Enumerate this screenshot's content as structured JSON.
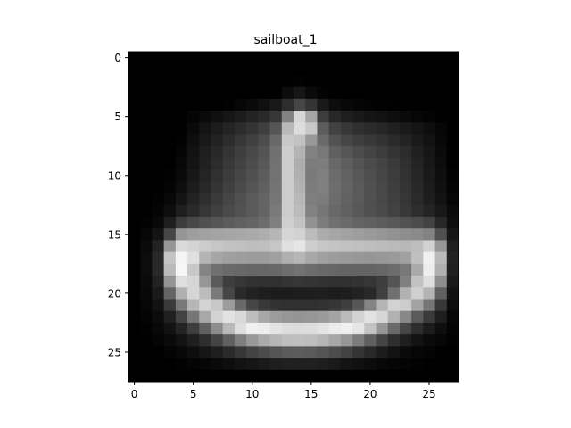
{
  "title": "sailboat_1",
  "chart_data": {
    "type": "heatmap",
    "title": "sailboat_1",
    "colormap": "gray",
    "value_range": [
      0,
      255
    ],
    "x_ticks": [
      0,
      5,
      10,
      15,
      20,
      25
    ],
    "y_ticks": [
      0,
      5,
      10,
      15,
      20,
      25
    ],
    "x_tick_labels": [
      "0",
      "5",
      "10",
      "15",
      "20",
      "25"
    ],
    "y_tick_labels": [
      "0",
      "5",
      "10",
      "15",
      "20",
      "25"
    ],
    "xlim": [
      -0.5,
      27.5
    ],
    "ylim": [
      27.5,
      -0.5
    ],
    "grid": false,
    "rows": [
      [
        0,
        0,
        0,
        0,
        0,
        0,
        0,
        0,
        0,
        0,
        0,
        0,
        0,
        0,
        0,
        0,
        0,
        0,
        0,
        0,
        0,
        0,
        0,
        0,
        0,
        0,
        0,
        0
      ],
      [
        0,
        0,
        0,
        0,
        0,
        0,
        0,
        0,
        0,
        0,
        0,
        0,
        0,
        0,
        0,
        0,
        0,
        0,
        0,
        0,
        0,
        0,
        0,
        0,
        0,
        0,
        0,
        0
      ],
      [
        0,
        0,
        0,
        0,
        0,
        0,
        0,
        0,
        0,
        0,
        0,
        0,
        0,
        0,
        2,
        0,
        0,
        0,
        0,
        0,
        0,
        0,
        0,
        0,
        0,
        0,
        0,
        0
      ],
      [
        0,
        0,
        0,
        0,
        0,
        0,
        0,
        0,
        0,
        0,
        0,
        0,
        0,
        12,
        22,
        10,
        3,
        0,
        0,
        0,
        0,
        0,
        0,
        0,
        0,
        0,
        0,
        0
      ],
      [
        0,
        0,
        0,
        0,
        0,
        0,
        0,
        0,
        2,
        6,
        10,
        16,
        24,
        45,
        70,
        52,
        25,
        13,
        8,
        5,
        3,
        2,
        1,
        0,
        0,
        0,
        0,
        0
      ],
      [
        0,
        0,
        0,
        0,
        0,
        5,
        10,
        16,
        22,
        28,
        35,
        42,
        55,
        130,
        215,
        165,
        60,
        40,
        30,
        25,
        20,
        18,
        14,
        10,
        6,
        3,
        0,
        0
      ],
      [
        0,
        0,
        0,
        0,
        0,
        10,
        20,
        28,
        36,
        44,
        52,
        62,
        85,
        185,
        220,
        200,
        92,
        66,
        55,
        48,
        42,
        38,
        32,
        26,
        20,
        14,
        6,
        0
      ],
      [
        0,
        0,
        0,
        0,
        2,
        14,
        24,
        34,
        44,
        54,
        64,
        76,
        104,
        200,
        195,
        152,
        106,
        82,
        70,
        62,
        56,
        50,
        42,
        35,
        26,
        18,
        8,
        0
      ],
      [
        0,
        0,
        0,
        0,
        5,
        18,
        30,
        40,
        52,
        62,
        72,
        84,
        112,
        205,
        180,
        130,
        120,
        96,
        86,
        76,
        68,
        60,
        52,
        44,
        32,
        22,
        10,
        0
      ],
      [
        0,
        0,
        0,
        0,
        8,
        20,
        33,
        44,
        56,
        66,
        76,
        88,
        114,
        205,
        174,
        124,
        125,
        104,
        94,
        84,
        75,
        68,
        58,
        48,
        36,
        24,
        12,
        0
      ],
      [
        0,
        0,
        0,
        2,
        10,
        24,
        36,
        48,
        60,
        70,
        80,
        92,
        114,
        205,
        176,
        122,
        128,
        108,
        98,
        88,
        78,
        70,
        60,
        50,
        38,
        26,
        14,
        2
      ],
      [
        0,
        0,
        0,
        4,
        14,
        28,
        40,
        52,
        64,
        74,
        84,
        96,
        116,
        204,
        180,
        124,
        128,
        110,
        100,
        90,
        80,
        72,
        62,
        52,
        40,
        28,
        16,
        4
      ],
      [
        0,
        0,
        2,
        8,
        20,
        34,
        46,
        58,
        70,
        80,
        90,
        100,
        118,
        204,
        184,
        126,
        124,
        108,
        98,
        90,
        80,
        72,
        64,
        54,
        42,
        30,
        18,
        6
      ],
      [
        0,
        0,
        4,
        14,
        30,
        42,
        54,
        64,
        74,
        82,
        90,
        100,
        122,
        204,
        188,
        130,
        118,
        104,
        96,
        88,
        80,
        74,
        66,
        56,
        46,
        36,
        24,
        10
      ],
      [
        0,
        2,
        8,
        30,
        60,
        72,
        80,
        86,
        92,
        96,
        100,
        108,
        128,
        208,
        196,
        146,
        124,
        112,
        106,
        100,
        96,
        92,
        88,
        82,
        76,
        66,
        40,
        14
      ],
      [
        0,
        6,
        20,
        70,
        150,
        158,
        162,
        164,
        166,
        168,
        170,
        174,
        182,
        214,
        210,
        188,
        172,
        166,
        162,
        158,
        154,
        150,
        146,
        142,
        138,
        130,
        80,
        22
      ],
      [
        0,
        10,
        34,
        150,
        218,
        212,
        204,
        198,
        194,
        192,
        190,
        192,
        198,
        224,
        230,
        206,
        198,
        196,
        194,
        192,
        190,
        188,
        186,
        184,
        190,
        210,
        150,
        30
      ],
      [
        0,
        12,
        40,
        196,
        245,
        224,
        180,
        166,
        160,
        158,
        156,
        156,
        160,
        176,
        182,
        168,
        160,
        156,
        154,
        152,
        150,
        152,
        154,
        160,
        192,
        240,
        186,
        34
      ],
      [
        0,
        12,
        40,
        186,
        246,
        200,
        132,
        112,
        106,
        104,
        102,
        102,
        104,
        110,
        114,
        108,
        104,
        102,
        100,
        100,
        100,
        102,
        108,
        120,
        170,
        238,
        176,
        32
      ],
      [
        0,
        10,
        34,
        148,
        222,
        214,
        150,
        90,
        62,
        54,
        50,
        48,
        48,
        52,
        54,
        52,
        50,
        48,
        48,
        50,
        54,
        62,
        84,
        128,
        194,
        222,
        142,
        26
      ],
      [
        0,
        8,
        26,
        100,
        176,
        214,
        188,
        122,
        70,
        42,
        34,
        30,
        28,
        28,
        30,
        30,
        30,
        28,
        30,
        34,
        40,
        64,
        112,
        178,
        208,
        180,
        96,
        18
      ],
      [
        0,
        6,
        18,
        58,
        120,
        182,
        212,
        200,
        156,
        104,
        70,
        56,
        50,
        48,
        48,
        48,
        50,
        54,
        62,
        86,
        132,
        180,
        210,
        204,
        162,
        118,
        56,
        12
      ],
      [
        0,
        4,
        12,
        32,
        66,
        118,
        168,
        210,
        226,
        216,
        190,
        168,
        156,
        150,
        148,
        150,
        154,
        164,
        186,
        210,
        226,
        214,
        178,
        136,
        90,
        58,
        30,
        6
      ],
      [
        0,
        2,
        8,
        18,
        36,
        62,
        96,
        140,
        186,
        222,
        240,
        238,
        228,
        222,
        220,
        222,
        228,
        236,
        240,
        230,
        196,
        150,
        104,
        70,
        46,
        28,
        14,
        4
      ],
      [
        0,
        0,
        4,
        10,
        18,
        30,
        46,
        68,
        96,
        126,
        152,
        170,
        182,
        190,
        192,
        190,
        182,
        168,
        150,
        124,
        96,
        68,
        46,
        30,
        18,
        10,
        6,
        2
      ],
      [
        0,
        0,
        0,
        4,
        8,
        14,
        22,
        30,
        42,
        54,
        66,
        76,
        84,
        90,
        92,
        90,
        84,
        76,
        66,
        52,
        40,
        28,
        18,
        10,
        6,
        4,
        0,
        0
      ],
      [
        0,
        0,
        0,
        0,
        2,
        4,
        6,
        10,
        14,
        18,
        22,
        26,
        30,
        32,
        32,
        32,
        30,
        26,
        20,
        16,
        12,
        8,
        6,
        4,
        2,
        0,
        0,
        0
      ],
      [
        0,
        0,
        0,
        0,
        0,
        0,
        0,
        0,
        0,
        0,
        0,
        0,
        0,
        0,
        0,
        0,
        0,
        0,
        0,
        0,
        0,
        0,
        0,
        0,
        0,
        0,
        0,
        0
      ]
    ]
  }
}
